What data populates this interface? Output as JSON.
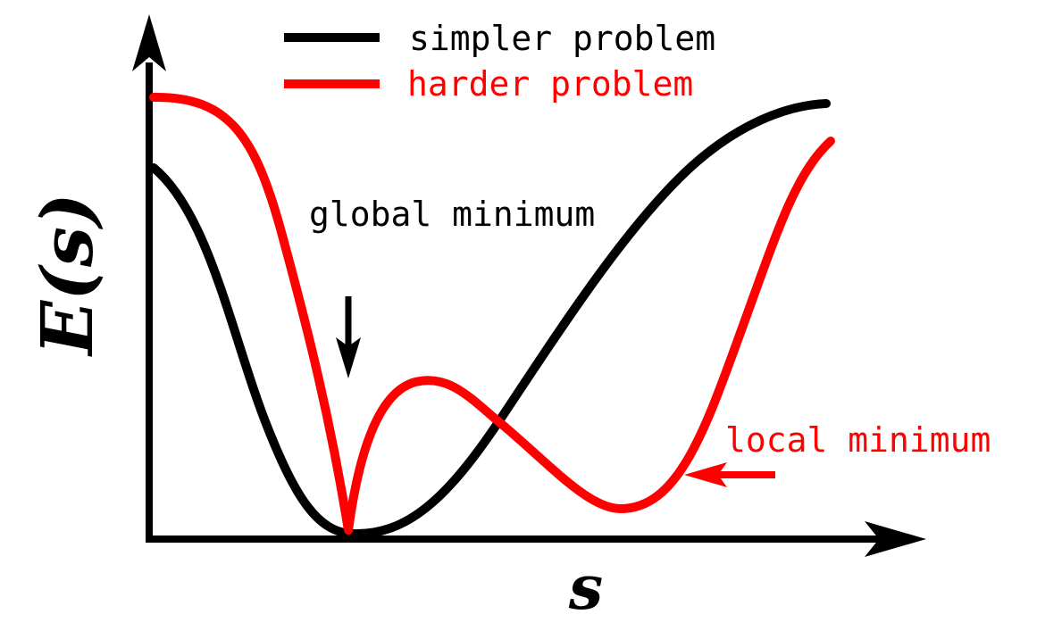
{
  "legend": {
    "items": [
      {
        "label": "simpler problem",
        "color": "#000000"
      },
      {
        "label": "harder problem",
        "color": "#ff0000"
      }
    ]
  },
  "annotations": {
    "global_minimum": "global minimum",
    "local_minimum": "local minimum"
  },
  "axes": {
    "y_label": "E(s)",
    "x_label": "s"
  },
  "colors": {
    "simpler": "#000000",
    "harder": "#ff0000",
    "axis": "#000000"
  }
}
